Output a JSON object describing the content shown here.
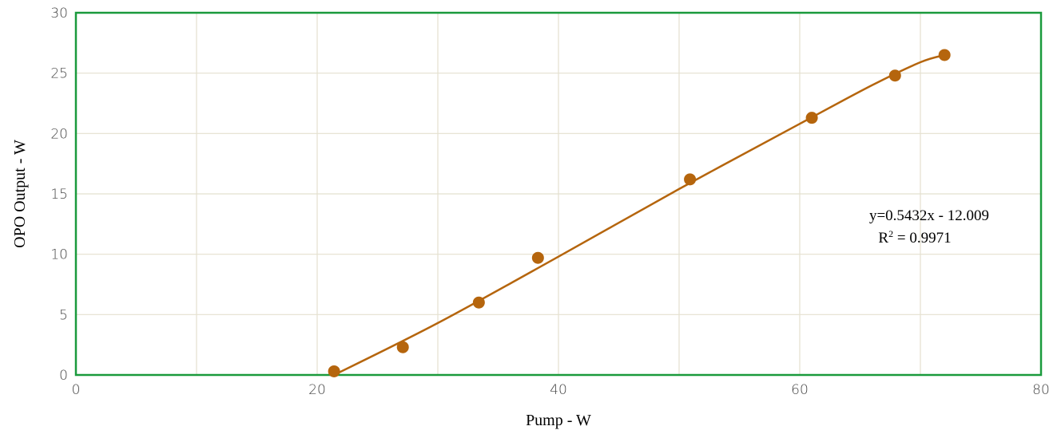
{
  "chart_data": {
    "type": "scatter",
    "title": "",
    "xlabel": "Pump - W",
    "ylabel": "OPO Output - W",
    "xlim": [
      0,
      80
    ],
    "ylim": [
      0,
      30
    ],
    "xticks": [
      "0",
      "20",
      "40",
      "60",
      "80"
    ],
    "yticks": [
      "0",
      "5",
      "10",
      "15",
      "20",
      "25",
      "30"
    ],
    "grid": true,
    "series": [
      {
        "points": [
          {
            "x": 21.4,
            "y": 0.3
          },
          {
            "x": 27.1,
            "y": 2.3
          },
          {
            "x": 33.4,
            "y": 6.0
          },
          {
            "x": 38.3,
            "y": 9.7
          },
          {
            "x": 50.9,
            "y": 16.2
          },
          {
            "x": 61.0,
            "y": 21.3
          },
          {
            "x": 67.9,
            "y": 24.8
          },
          {
            "x": 72.0,
            "y": 26.5
          }
        ]
      }
    ],
    "fit_line": [
      {
        "x": 21.4,
        "y": 0.0
      },
      {
        "x": 30.0,
        "y": 4.3
      },
      {
        "x": 40.0,
        "y": 9.8
      },
      {
        "x": 50.0,
        "y": 15.4
      },
      {
        "x": 60.0,
        "y": 20.8
      },
      {
        "x": 66.0,
        "y": 24.0
      },
      {
        "x": 70.0,
        "y": 25.9
      },
      {
        "x": 72.0,
        "y": 26.5
      }
    ],
    "annotation": {
      "equation": "y=0.5432x - 12.009",
      "r2_prefix": "R",
      "r2_sup": "2",
      "r2_value": " = 0.9971"
    },
    "colors": {
      "marker": "#b5650d",
      "line": "#b5650d",
      "frame": "#1a9a3c",
      "grid": "#e4e0cf"
    }
  }
}
